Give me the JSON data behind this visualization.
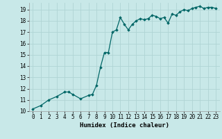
{
  "x": [
    0,
    1,
    2,
    3,
    4,
    4.5,
    5,
    6,
    7,
    7.5,
    8,
    8.5,
    9,
    9.5,
    10,
    10.5,
    11,
    11.5,
    12,
    12.5,
    13,
    13.5,
    14,
    14.5,
    15,
    15.5,
    16,
    16.5,
    17,
    17.5,
    18,
    18.5,
    19,
    19.5,
    20,
    20.5,
    21,
    21.5,
    22,
    22.5,
    23
  ],
  "y": [
    10.2,
    10.5,
    11.0,
    11.3,
    11.7,
    11.7,
    11.5,
    11.1,
    11.4,
    11.5,
    12.3,
    13.9,
    15.2,
    15.2,
    17.0,
    17.2,
    18.3,
    17.7,
    17.2,
    17.7,
    18.0,
    18.2,
    18.1,
    18.2,
    18.5,
    18.4,
    18.2,
    18.3,
    17.8,
    18.6,
    18.5,
    18.8,
    19.0,
    18.9,
    19.1,
    19.2,
    19.3,
    19.1,
    19.2,
    19.2,
    19.1
  ],
  "line_color": "#006666",
  "marker_color": "#006666",
  "bg_color": "#c8e8e8",
  "grid_color": "#b0d4d4",
  "xlabel": "Humidex (Indice chaleur)",
  "xlim": [
    -0.5,
    23.5
  ],
  "ylim": [
    10,
    19.6
  ],
  "yticks": [
    10,
    11,
    12,
    13,
    14,
    15,
    16,
    17,
    18,
    19
  ],
  "xticks": [
    0,
    1,
    2,
    3,
    4,
    5,
    6,
    7,
    8,
    9,
    10,
    11,
    12,
    13,
    14,
    15,
    16,
    17,
    18,
    19,
    20,
    21,
    22,
    23
  ],
  "tick_fontsize": 5.5,
  "label_fontsize": 6.5
}
